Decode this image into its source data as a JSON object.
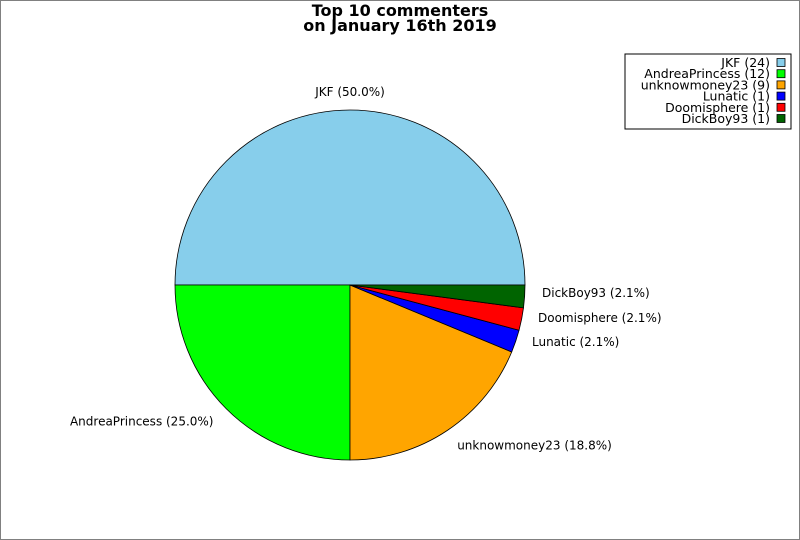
{
  "chart_data": {
    "type": "pie",
    "title": [
      "Top 10 commenters",
      "on January 16th 2019"
    ],
    "slices": [
      {
        "name": "JKF",
        "value": 24,
        "percent_label": "50.0%",
        "color": "#87ceeb",
        "legend_label": "JKF (24)",
        "slice_label": "JKF (50.0%)"
      },
      {
        "name": "AndreaPrincess",
        "value": 12,
        "percent_label": "25.0%",
        "color": "#00ff00",
        "legend_label": "AndreaPrincess (12)",
        "slice_label": "AndreaPrincess (25.0%)"
      },
      {
        "name": "unknowmoney23",
        "value": 9,
        "percent_label": "18.8%",
        "color": "#ffa500",
        "legend_label": "unknowmoney23 (9)",
        "slice_label": "unknowmoney23 (18.8%)"
      },
      {
        "name": "Lunatic",
        "value": 1,
        "percent_label": "2.1%",
        "color": "#0000ff",
        "legend_label": "Lunatic (1)",
        "slice_label": "Lunatic (2.1%)"
      },
      {
        "name": "Doomisphere",
        "value": 1,
        "percent_label": "2.1%",
        "color": "#ff0000",
        "legend_label": "Doomisphere (1)",
        "slice_label": "Doomisphere (2.1%)"
      },
      {
        "name": "DickBoy93",
        "value": 1,
        "percent_label": "2.1%",
        "color": "#006400",
        "legend_label": "DickBoy93 (1)",
        "slice_label": "DickBoy93 (2.1%)"
      }
    ],
    "legend_position": "top-right",
    "start_angle": "3 o'clock, counter-clockwise"
  }
}
